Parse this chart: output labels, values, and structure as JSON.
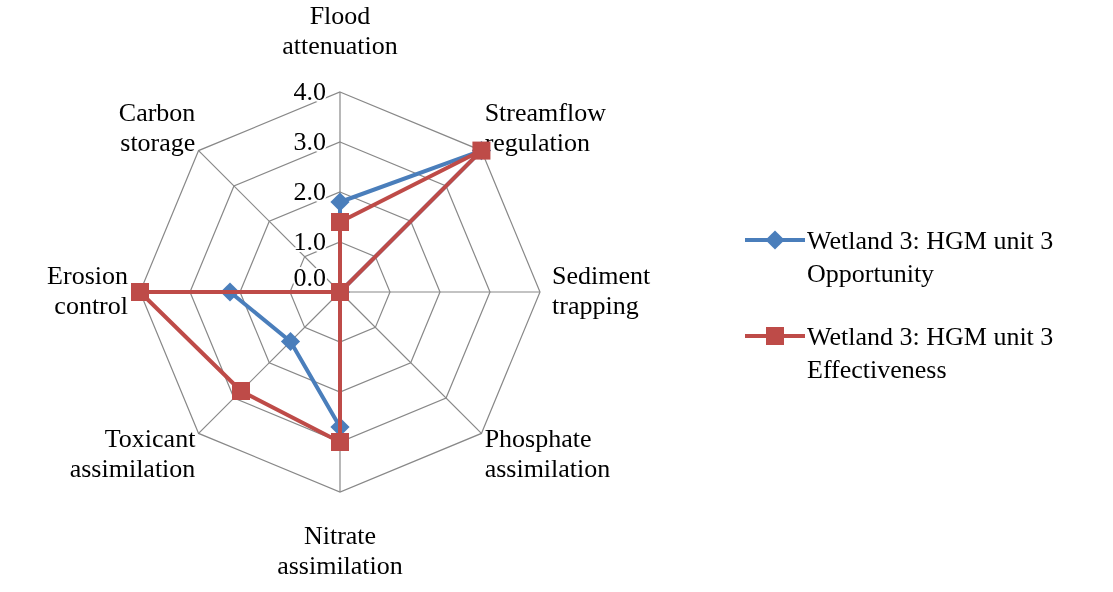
{
  "chart_data": {
    "type": "radar",
    "categories": [
      "Flood attenuation",
      "Streamflow regulation",
      "Sediment trapping",
      "Phosphate assimilation",
      "Nitrate assimilation",
      "Toxicant assimilation",
      "Erosion control",
      "Carbon storage"
    ],
    "series": [
      {
        "name": "Wetland 3: HGM unit 3 Opportunity",
        "color": "#4a7ebb",
        "marker": "diamond",
        "values": [
          1.8,
          4.0,
          0,
          0,
          2.7,
          1.4,
          2.2,
          0
        ]
      },
      {
        "name": "Wetland 3: HGM unit 3 Effectiveness",
        "color": "#be4b48",
        "marker": "square",
        "values": [
          1.4,
          4.0,
          0,
          0,
          3.0,
          2.8,
          4.0,
          0
        ]
      }
    ],
    "ylim": [
      0,
      4
    ],
    "yticks": [
      {
        "value": 0,
        "label": "0.0"
      },
      {
        "value": 1,
        "label": "1.0"
      },
      {
        "value": 2,
        "label": "2.0"
      },
      {
        "value": 3,
        "label": "3.0"
      },
      {
        "value": 4,
        "label": "4.0"
      }
    ],
    "grid": true,
    "legend": "right"
  }
}
